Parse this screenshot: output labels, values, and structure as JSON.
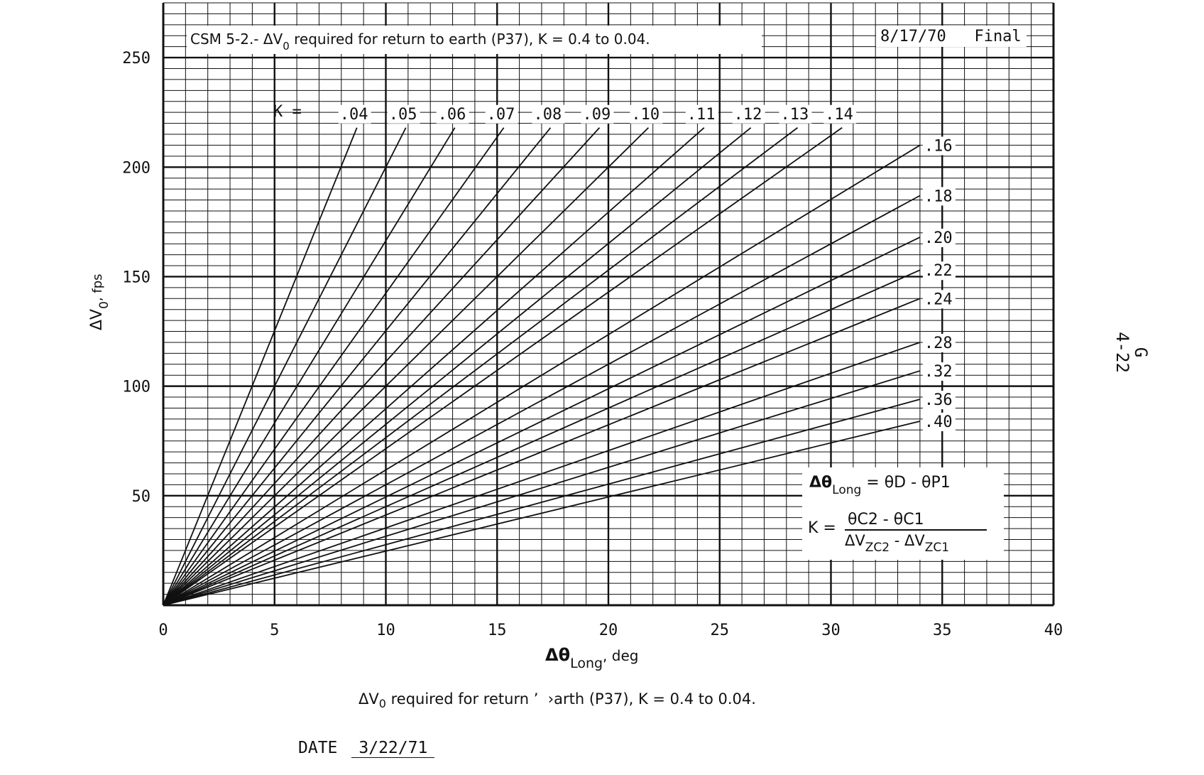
{
  "chart_data": {
    "type": "line",
    "title": "CSM 5-2.- ΔV0 required for return to earth (P37), K = 0.4 to 0.04.",
    "title_parts": {
      "prefix": "CSM 5-2.- ΔV",
      "sub": "0",
      "suffix": " required for return to earth (P37), K = 0.4 to 0.04."
    },
    "stamp": "8/17/70   Final",
    "xlabel": {
      "main": "Δθ",
      "sub": "Long",
      "suffix": ", deg"
    },
    "ylabel": {
      "main": "ΔV",
      "sub": "0",
      "suffix": ", fps"
    },
    "xlim": [
      0,
      40
    ],
    "ylim": [
      0,
      275
    ],
    "x_ticks": [
      0,
      5,
      10,
      15,
      20,
      25,
      30,
      35,
      40
    ],
    "y_ticks": [
      50,
      100,
      150,
      200,
      250
    ],
    "grid": true,
    "k_prefix": "K =",
    "series": [
      {
        "name": ".04",
        "end": [
          8.7,
          218
        ]
      },
      {
        "name": ".05",
        "end": [
          10.9,
          218
        ]
      },
      {
        "name": ".06",
        "end": [
          13.1,
          218
        ]
      },
      {
        "name": ".07",
        "end": [
          15.3,
          218
        ]
      },
      {
        "name": ".08",
        "end": [
          17.4,
          218
        ]
      },
      {
        "name": ".09",
        "end": [
          19.6,
          218
        ]
      },
      {
        "name": ".10",
        "end": [
          21.8,
          218
        ]
      },
      {
        "name": ".11",
        "end": [
          24.3,
          218
        ]
      },
      {
        "name": ".12",
        "end": [
          26.4,
          218
        ]
      },
      {
        "name": ".13",
        "end": [
          28.5,
          218
        ]
      },
      {
        "name": ".14",
        "end": [
          30.5,
          218
        ]
      },
      {
        "name": ".16",
        "end": [
          34.0,
          210
        ]
      },
      {
        "name": ".18",
        "end": [
          34.0,
          187
        ]
      },
      {
        "name": ".20",
        "end": [
          34.0,
          168
        ]
      },
      {
        "name": ".22",
        "end": [
          34.0,
          153
        ]
      },
      {
        "name": ".24",
        "end": [
          34.0,
          140
        ]
      },
      {
        "name": ".28",
        "end": [
          34.0,
          120
        ]
      },
      {
        "name": ".32",
        "end": [
          34.0,
          107
        ]
      },
      {
        "name": ".36",
        "end": [
          34.0,
          94
        ]
      },
      {
        "name": ".40",
        "end": [
          34.0,
          84
        ]
      }
    ],
    "formula": {
      "line1": {
        "a": "Δθ",
        "a_sub": "Long",
        "eq": " = ",
        "b": "θD - θP1"
      },
      "line2": {
        "lhs": "K =",
        "num": "θC2 - θC1",
        "den_a": "ΔV",
        "den_a_sub": "ZC2",
        "den_mid": " - ΔV",
        "den_b_sub": "ZC1"
      }
    }
  },
  "page_number": {
    "line1": "G",
    "line2": "4-22"
  },
  "caption": {
    "prefix": "ΔV",
    "sub": "0",
    "suffix": " required for return ’  ›arth (P37), K = 0.4 to 0.04."
  },
  "date": {
    "label": "DATE",
    "value": "3/22/71"
  }
}
